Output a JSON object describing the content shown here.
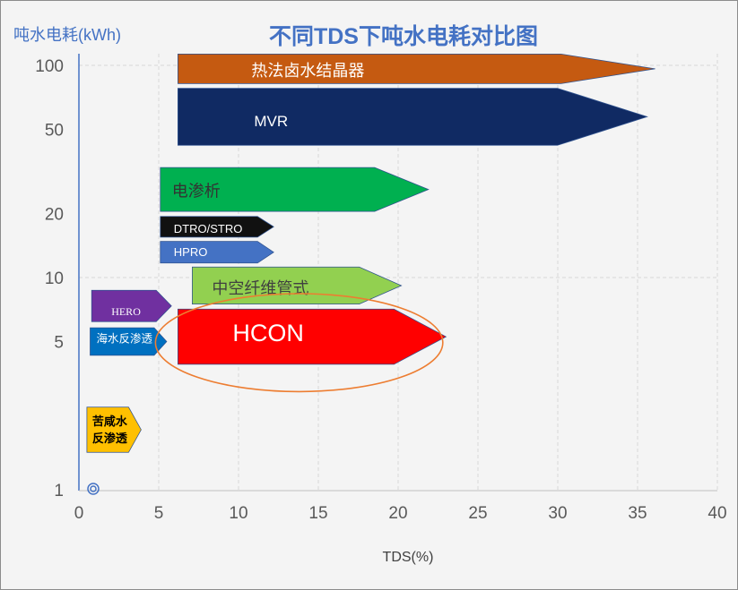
{
  "chart_data": {
    "type": "bar",
    "title": "不同TDS下吨水电耗对比图",
    "xlabel": "TDS(%)",
    "ylabel": "吨水电耗(kWh)",
    "xlim": [
      0,
      40
    ],
    "ylim": [
      1,
      100
    ],
    "yscale": "log",
    "grid": true,
    "xticks": [
      0,
      5,
      10,
      15,
      20,
      25,
      30,
      35,
      40
    ],
    "yticks": [
      1,
      5,
      10,
      20,
      50,
      100
    ],
    "outline": "#2F528F",
    "series": [
      {
        "label": [
          "热法卤水结晶器"
        ],
        "tds": [
          6.2,
          36.1
        ],
        "energy": [
          82,
          113
        ],
        "color": "#C55A11",
        "label_color": "#FFFFFF"
      },
      {
        "label": [
          "MVR"
        ],
        "tds": [
          6.2,
          35.6
        ],
        "energy": [
          42,
          78
        ],
        "color": "#102A63",
        "label_color": "#FFFFFF"
      },
      {
        "label": [
          "电渗析"
        ],
        "tds": [
          5.1,
          21.9
        ],
        "energy": [
          20.5,
          33
        ],
        "color": "#00B050",
        "label_color": "#333333"
      },
      {
        "label": [
          "DTRO/STRO"
        ],
        "tds": [
          5.1,
          12.2
        ],
        "energy": [
          15.5,
          19.4
        ],
        "color": "#111111",
        "label_color": "#FFFFFF"
      },
      {
        "label": [
          "HPRO"
        ],
        "tds": [
          5.1,
          12.2
        ],
        "energy": [
          11.7,
          14.8
        ],
        "color": "#4472C4",
        "label_color": "#FFFFFF"
      },
      {
        "label": [
          "中空纤维管式"
        ],
        "tds": [
          7.1,
          20.2
        ],
        "energy": [
          7.5,
          11.2
        ],
        "color": "#92D050",
        "label_color": "#404040"
      },
      {
        "label": [
          "HCON"
        ],
        "tds": [
          6.2,
          23.0
        ],
        "energy": [
          3.9,
          7.1
        ],
        "color": "#FF0000",
        "label_color": "#FFFFFF"
      },
      {
        "label": [
          "HERO"
        ],
        "tds": [
          0.8,
          5.8
        ],
        "energy": [
          6.2,
          8.7
        ],
        "color": "#7030A0",
        "label_color": "#FFFFFF"
      },
      {
        "label": [
          "海水反渗透"
        ],
        "tds": [
          0.7,
          5.5
        ],
        "energy": [
          4.3,
          5.8
        ],
        "color": "#0070C0",
        "label_color": "#FFFFFF"
      },
      {
        "label": [
          "苦咸水",
          "反渗透"
        ],
        "tds": [
          0.5,
          3.9
        ],
        "energy": [
          1.5,
          2.45
        ],
        "color": "#FFC000",
        "label_color": "#000000"
      }
    ],
    "markers": [
      {
        "x": 0.9,
        "y": 1,
        "color": "#4472C4"
      }
    ],
    "highlight": {
      "x": [
        4.8,
        22.8
      ],
      "y": [
        2.9,
        8.4
      ],
      "color": "#ED7D31"
    }
  }
}
